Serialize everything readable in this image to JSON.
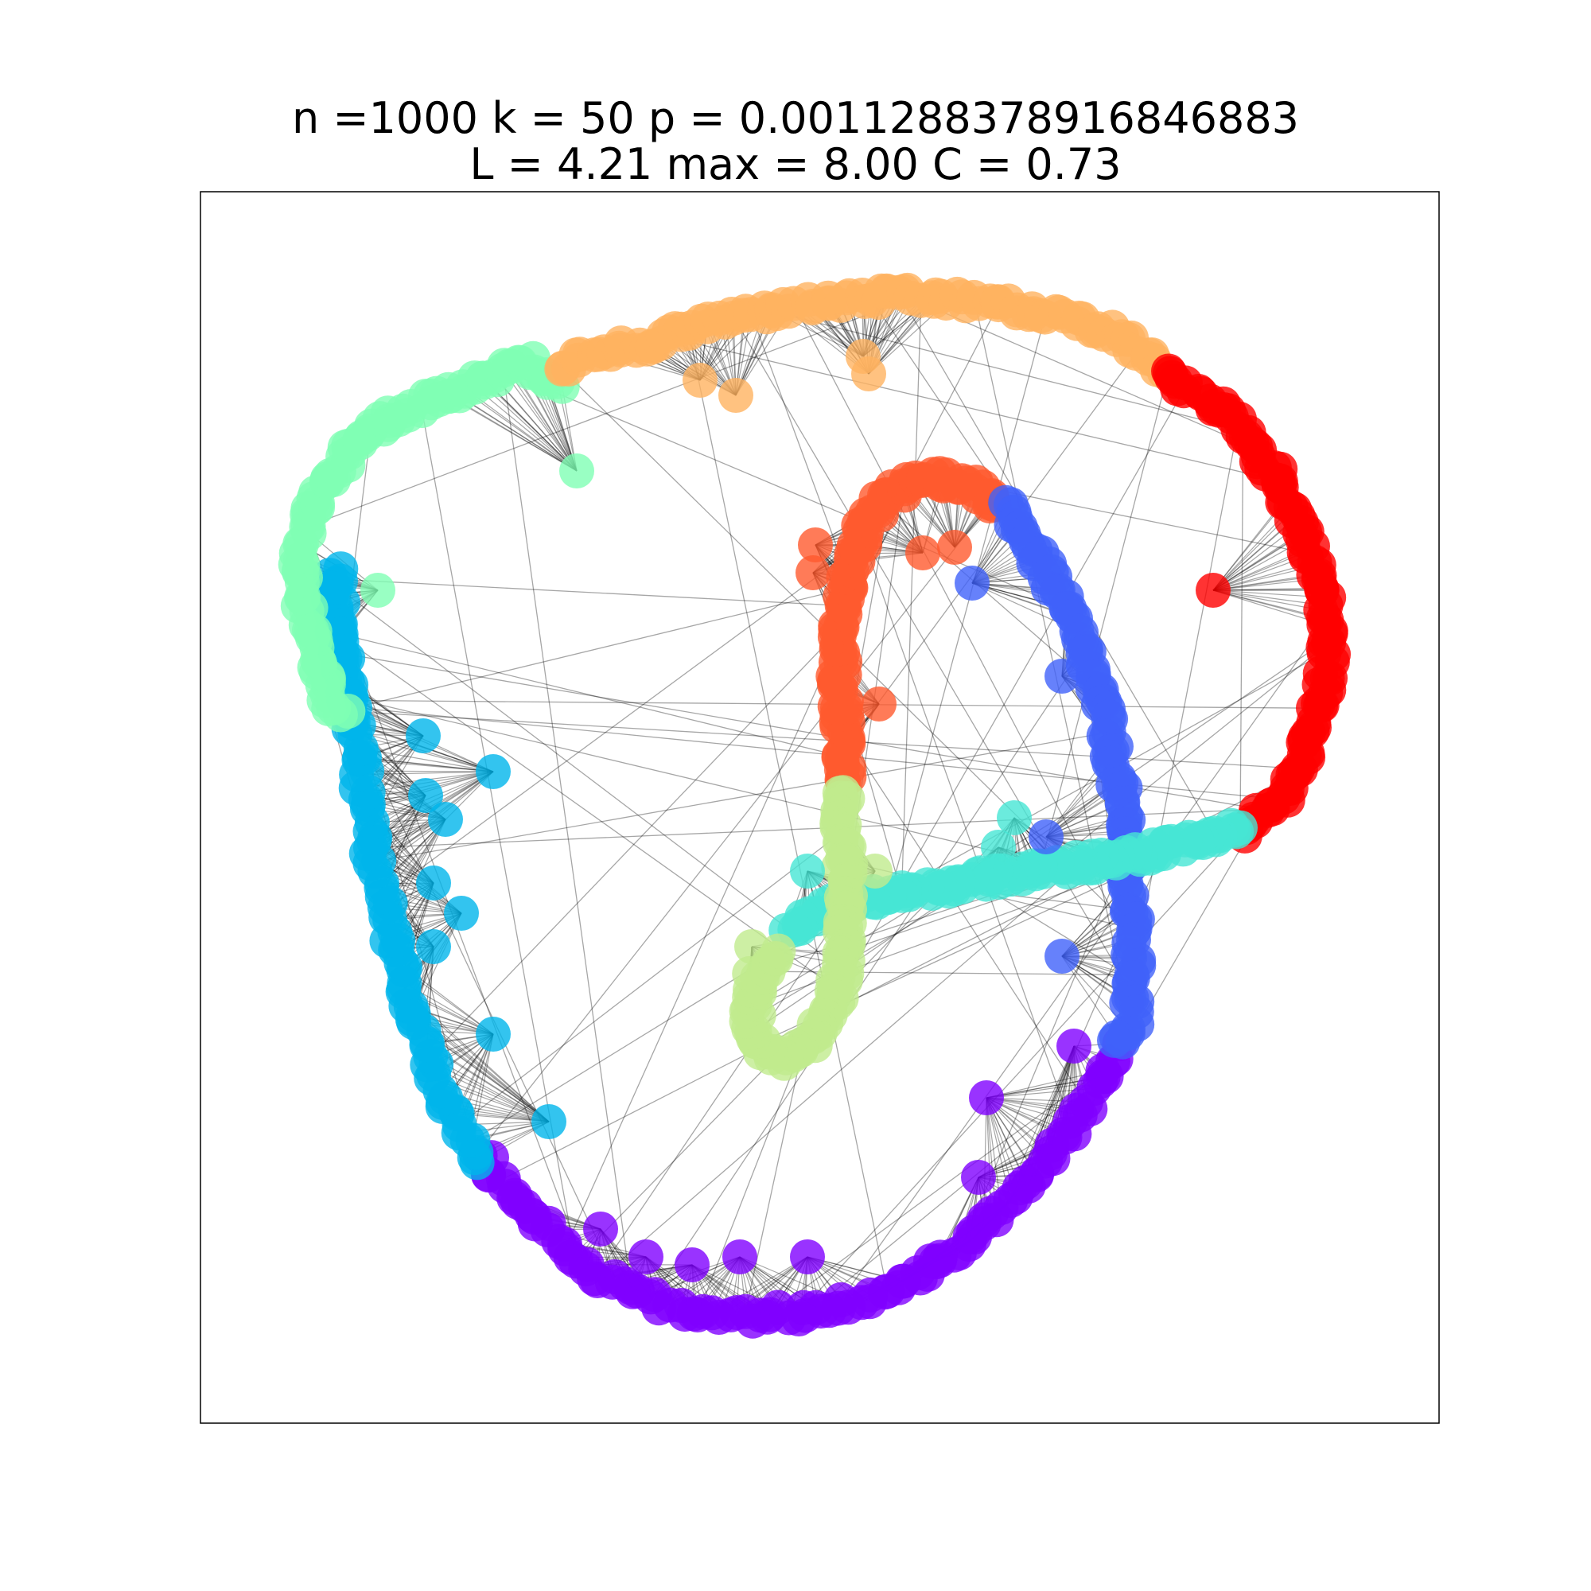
{
  "title": {
    "line1": "n =1000 k = 50 p = 0.001128837891684​6883",
    "line2": "L = 4.21 max = 8.00 C = 0.73"
  },
  "graph": {
    "type": "network",
    "node_count": 1000,
    "k": 50,
    "p": 0.0011288378916846883,
    "average_path_length": 4.21,
    "max_path_length": 8.0,
    "clustering": 0.73,
    "community_colors": [
      "#8000ff",
      "#00b5eb",
      "#80ffb4",
      "#ffb360",
      "#ff0000",
      "#ff5a2e",
      "#4062fa",
      "#46e6d5",
      "#c0eb8d"
    ]
  }
}
